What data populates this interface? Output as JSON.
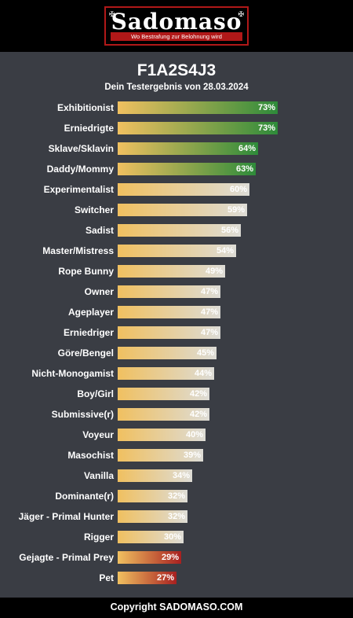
{
  "logo": {
    "text": "Sadomaso",
    "tagline": "Wo Bestrafung zur Belohnung wird",
    "ornament_left": "✠",
    "ornament_right": "✠"
  },
  "result": {
    "title": "F1A2S4J3",
    "subtitle": "Dein Testergebnis von 28.03.2024"
  },
  "colors": {
    "background": "#3a3d44",
    "high": "#2e8b3a",
    "mid": "#dddcd6",
    "low": "#a82020",
    "start": "#f0c060"
  },
  "items": [
    {
      "label": "Exhibitionist",
      "value": 73,
      "pct": "73%",
      "tier": "high"
    },
    {
      "label": "Erniedrigte",
      "value": 73,
      "pct": "73%",
      "tier": "high"
    },
    {
      "label": "Sklave/Sklavin",
      "value": 64,
      "pct": "64%",
      "tier": "high"
    },
    {
      "label": "Daddy/Mommy",
      "value": 63,
      "pct": "63%",
      "tier": "high"
    },
    {
      "label": "Experimentalist",
      "value": 60,
      "pct": "60%",
      "tier": "mid"
    },
    {
      "label": "Switcher",
      "value": 59,
      "pct": "59%",
      "tier": "mid"
    },
    {
      "label": "Sadist",
      "value": 56,
      "pct": "56%",
      "tier": "mid"
    },
    {
      "label": "Master/Mistress",
      "value": 54,
      "pct": "54%",
      "tier": "mid"
    },
    {
      "label": "Rope Bunny",
      "value": 49,
      "pct": "49%",
      "tier": "mid"
    },
    {
      "label": "Owner",
      "value": 47,
      "pct": "47%",
      "tier": "mid"
    },
    {
      "label": "Ageplayer",
      "value": 47,
      "pct": "47%",
      "tier": "mid"
    },
    {
      "label": "Erniedriger",
      "value": 47,
      "pct": "47%",
      "tier": "mid"
    },
    {
      "label": "Göre/Bengel",
      "value": 45,
      "pct": "45%",
      "tier": "mid"
    },
    {
      "label": "Nicht-Monogamist",
      "value": 44,
      "pct": "44%",
      "tier": "mid"
    },
    {
      "label": "Boy/Girl",
      "value": 42,
      "pct": "42%",
      "tier": "mid"
    },
    {
      "label": "Submissive(r)",
      "value": 42,
      "pct": "42%",
      "tier": "mid"
    },
    {
      "label": "Voyeur",
      "value": 40,
      "pct": "40%",
      "tier": "mid"
    },
    {
      "label": "Masochist",
      "value": 39,
      "pct": "39%",
      "tier": "mid"
    },
    {
      "label": "Vanilla",
      "value": 34,
      "pct": "34%",
      "tier": "mid"
    },
    {
      "label": "Dominante(r)",
      "value": 32,
      "pct": "32%",
      "tier": "mid"
    },
    {
      "label": "Jäger - Primal Hunter",
      "value": 32,
      "pct": "32%",
      "tier": "mid"
    },
    {
      "label": "Rigger",
      "value": 30,
      "pct": "30%",
      "tier": "mid"
    },
    {
      "label": "Gejagte - Primal Prey",
      "value": 29,
      "pct": "29%",
      "tier": "low"
    },
    {
      "label": "Pet",
      "value": 27,
      "pct": "27%",
      "tier": "low"
    }
  ],
  "footer": {
    "copyright": "Copyright SADOMASO.COM"
  }
}
